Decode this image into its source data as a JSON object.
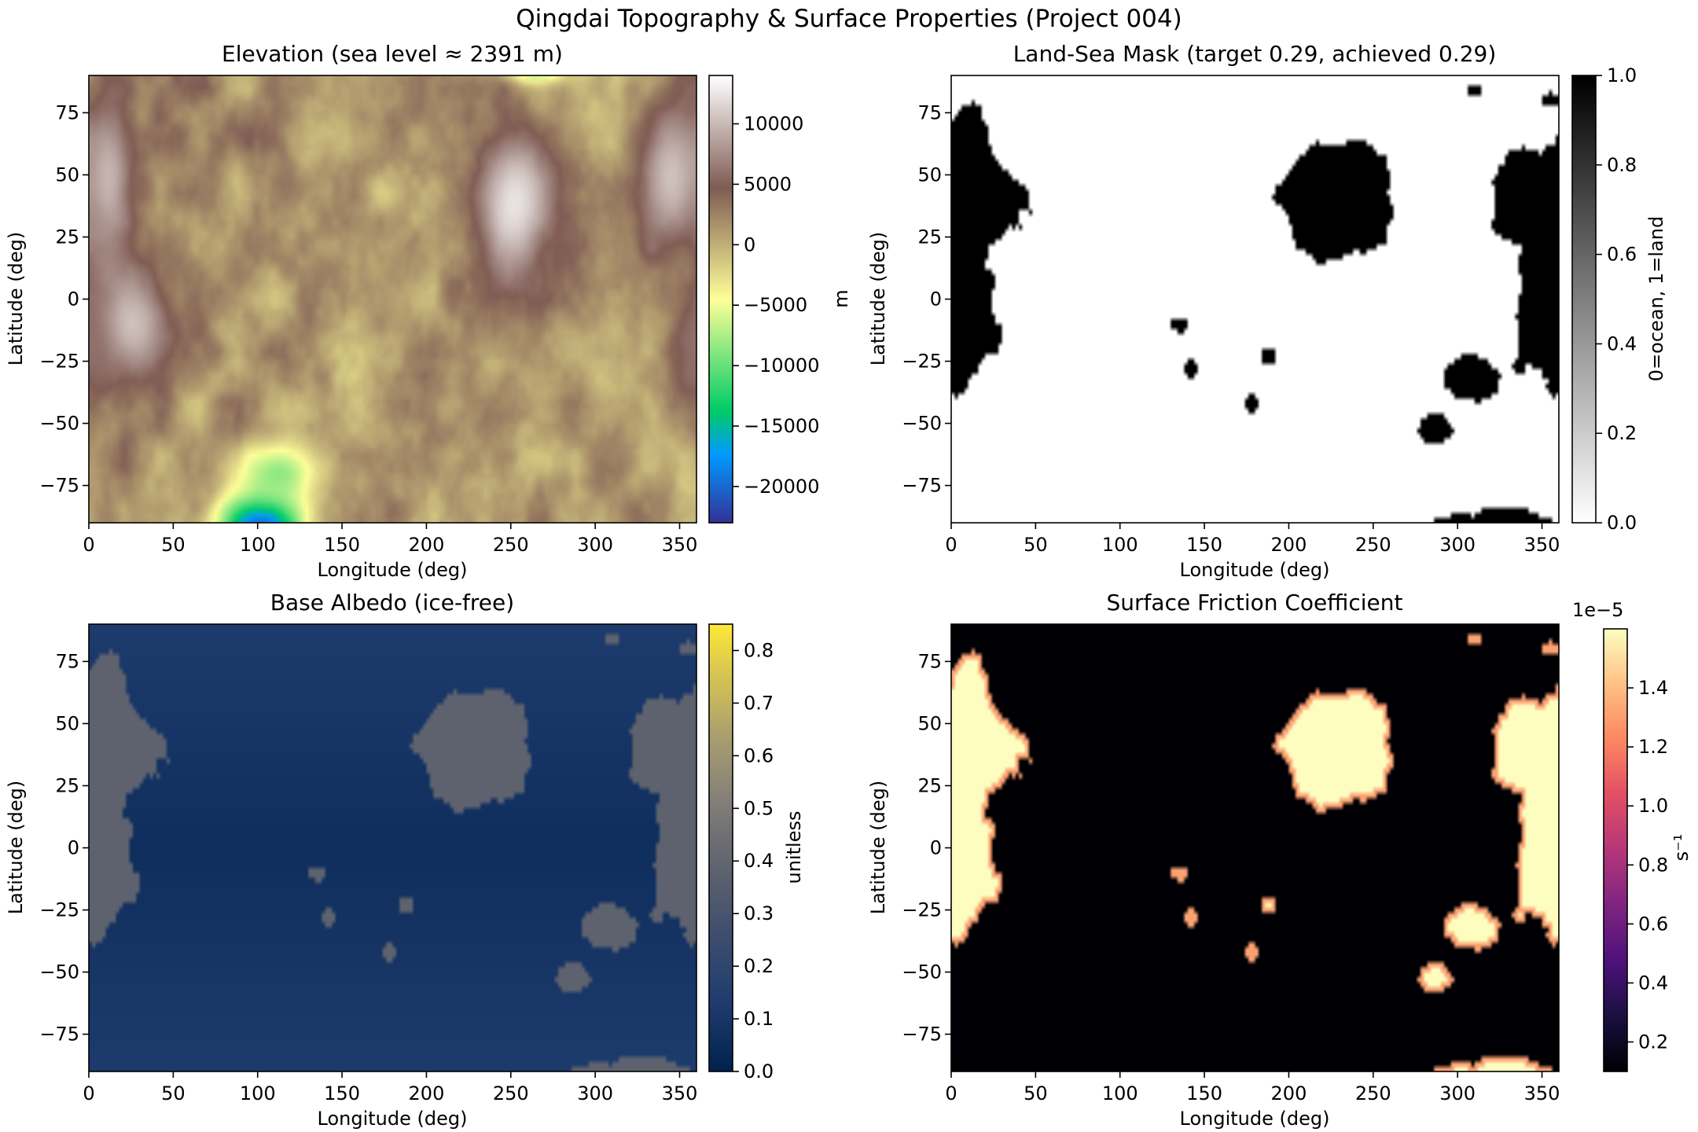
{
  "suptitle": "Qingdai Topography & Surface Properties (Project 004)",
  "chart_data": [
    {
      "type": "heatmap",
      "title": "Elevation (sea level ≈ 2391 m)",
      "xlabel": "Longitude (deg)",
      "ylabel": "Latitude (deg)",
      "xlim": [
        0,
        360
      ],
      "ylim": [
        -90,
        90
      ],
      "xticks": [
        0,
        50,
        100,
        150,
        200,
        250,
        300,
        350
      ],
      "yticks": [
        -75,
        -50,
        -25,
        0,
        25,
        50,
        75
      ],
      "colormap": "terrain",
      "colorbar": {
        "label": "m",
        "range": [
          -23000,
          14000
        ],
        "ticks": [
          -20000,
          -15000,
          -10000,
          -5000,
          0,
          5000,
          10000
        ],
        "tick_labels": [
          "−20000",
          "−15000",
          "−10000",
          "−5000",
          "0",
          "5000",
          "10000"
        ],
        "exponent": ""
      },
      "features": [
        {
          "kind": "highland",
          "lon": 252,
          "lat": 38,
          "rx": 30,
          "ry": 40,
          "value": 13000
        },
        {
          "kind": "highland",
          "lon": 12,
          "lat": 48,
          "rx": 18,
          "ry": 42,
          "value": 10000
        },
        {
          "kind": "highland",
          "lon": 25,
          "lat": -10,
          "rx": 32,
          "ry": 32,
          "value": 11000
        },
        {
          "kind": "highland",
          "lon": 345,
          "lat": 48,
          "rx": 26,
          "ry": 38,
          "value": 11000
        },
        {
          "kind": "highland",
          "lon": 360,
          "lat": -20,
          "rx": 18,
          "ry": 28,
          "value": 6000
        },
        {
          "kind": "trench",
          "lon": 102,
          "lat": -92,
          "rx": 32,
          "ry": 18,
          "value": -23000
        },
        {
          "kind": "trench",
          "lon": 265,
          "lat": 92,
          "rx": 25,
          "ry": 6,
          "value": -9000
        },
        {
          "kind": "trench",
          "lon": 112,
          "lat": -70,
          "rx": 35,
          "ry": 18,
          "value": -9000
        }
      ]
    },
    {
      "type": "heatmap",
      "title": "Land-Sea Mask (target 0.29, achieved 0.29)",
      "xlabel": "Longitude (deg)",
      "ylabel": "Latitude (deg)",
      "xlim": [
        0,
        360
      ],
      "ylim": [
        -90,
        90
      ],
      "xticks": [
        0,
        50,
        100,
        150,
        200,
        250,
        300,
        350
      ],
      "yticks": [
        -75,
        -50,
        -25,
        0,
        25,
        50,
        75
      ],
      "colormap": "binary",
      "target_fraction": 0.29,
      "achieved_fraction": 0.29,
      "colorbar": {
        "label": "0=ocean, 1=land",
        "range": [
          0,
          1
        ],
        "ticks": [
          0,
          0.2,
          0.4,
          0.6,
          0.8,
          1.0
        ],
        "tick_labels": [
          "0.0",
          "0.2",
          "0.4",
          "0.6",
          "0.8",
          "1.0"
        ],
        "exponent": ""
      },
      "features": []
    },
    {
      "type": "heatmap",
      "title": "Base Albedo (ice-free)",
      "xlabel": "Longitude (deg)",
      "ylabel": "Latitude (deg)",
      "xlim": [
        0,
        360
      ],
      "ylim": [
        -90,
        90
      ],
      "xticks": [
        0,
        50,
        100,
        150,
        200,
        250,
        300,
        350
      ],
      "yticks": [
        -75,
        -50,
        -25,
        0,
        25,
        50,
        75
      ],
      "colormap": "cividis",
      "land_value": 0.38,
      "ocean_value_equator": 0.06,
      "ocean_value_pole": 0.12,
      "colorbar": {
        "label": "unitless",
        "range": [
          0,
          0.85
        ],
        "ticks": [
          0,
          0.1,
          0.2,
          0.3,
          0.4,
          0.5,
          0.6,
          0.7,
          0.8
        ],
        "tick_labels": [
          "0.0",
          "0.1",
          "0.2",
          "0.3",
          "0.4",
          "0.5",
          "0.6",
          "0.7",
          "0.8"
        ],
        "exponent": ""
      },
      "features": []
    },
    {
      "type": "heatmap",
      "title": "Surface Friction Coefficient",
      "xlabel": "Longitude (deg)",
      "ylabel": "Latitude (deg)",
      "xlim": [
        0,
        360
      ],
      "ylim": [
        -90,
        90
      ],
      "xticks": [
        0,
        50,
        100,
        150,
        200,
        250,
        300,
        350
      ],
      "yticks": [
        -75,
        -50,
        -25,
        0,
        25,
        50,
        75
      ],
      "colormap": "magma",
      "land_value": 1.6e-05,
      "ocean_value": 1e-06,
      "colorbar": {
        "label": "s⁻¹",
        "range": [
          1e-06,
          1.6e-05
        ],
        "ticks": [
          2e-06,
          4e-06,
          6e-06,
          8e-06,
          1e-05,
          1.2e-05,
          1.4e-05
        ],
        "tick_labels": [
          "0.2",
          "0.4",
          "0.6",
          "0.8",
          "1.0",
          "1.2",
          "1.4"
        ],
        "exponent": "1e−5"
      },
      "features": []
    }
  ],
  "landmasses": [
    {
      "lon": 0,
      "lat": -2,
      "rx": 38,
      "ry": 50
    },
    {
      "lon": 10,
      "lat": 62,
      "rx": 18,
      "ry": 22
    },
    {
      "lon": 228,
      "lat": 38,
      "rx": 46,
      "ry": 36
    },
    {
      "lon": 360,
      "lat": 42,
      "rx": 55,
      "ry": 30
    },
    {
      "lon": 360,
      "lat": -20,
      "rx": 14,
      "ry": 18
    },
    {
      "lon": 308,
      "lat": -33,
      "rx": 22,
      "ry": 12
    },
    {
      "lon": 288,
      "lat": -52,
      "rx": 14,
      "ry": 9
    },
    {
      "lon": 320,
      "lat": -93,
      "rx": 55,
      "ry": 12
    },
    {
      "lon": 188,
      "lat": -23,
      "rx": 7,
      "ry": 6
    },
    {
      "lon": 142,
      "lat": -28,
      "rx": 5,
      "ry": 5
    },
    {
      "lon": 178,
      "lat": -42,
      "rx": 4,
      "ry": 4
    },
    {
      "lon": 134,
      "lat": -10,
      "rx": 8,
      "ry": 4
    },
    {
      "lon": 310,
      "lat": 84,
      "rx": 5,
      "ry": 3
    },
    {
      "lon": 355,
      "lat": 80,
      "rx": 8,
      "ry": 4
    }
  ]
}
